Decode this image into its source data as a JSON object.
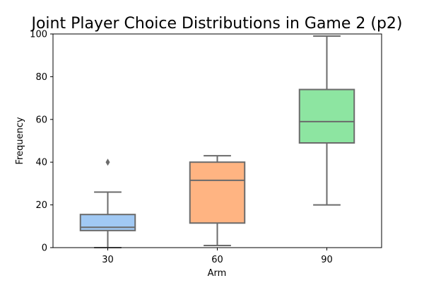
{
  "chart_data": {
    "type": "box",
    "title": "Joint Player Choice Distributions in Game 2 (p2)",
    "xlabel": "Arm",
    "ylabel": "Frequency",
    "categories": [
      "30",
      "60",
      "90"
    ],
    "ylim": [
      0,
      100
    ],
    "yticks": [
      0,
      20,
      40,
      60,
      80,
      100
    ],
    "grid": false,
    "legend": "none",
    "boxes": [
      {
        "category": "30",
        "whisker_low": 0,
        "q1": 8,
        "median": 9.5,
        "q3": 15.5,
        "whisker_high": 26,
        "outliers": [
          40
        ],
        "color": "#a1c9f4"
      },
      {
        "category": "60",
        "whisker_low": 1,
        "q1": 11.5,
        "median": 31.5,
        "q3": 40,
        "whisker_high": 43,
        "outliers": [],
        "color": "#ffb482"
      },
      {
        "category": "90",
        "whisker_low": 20,
        "q1": 49,
        "median": 59,
        "q3": 74,
        "whisker_high": 99,
        "outliers": [],
        "color": "#8de5a1"
      }
    ],
    "line_color": "#6b6b6b"
  }
}
